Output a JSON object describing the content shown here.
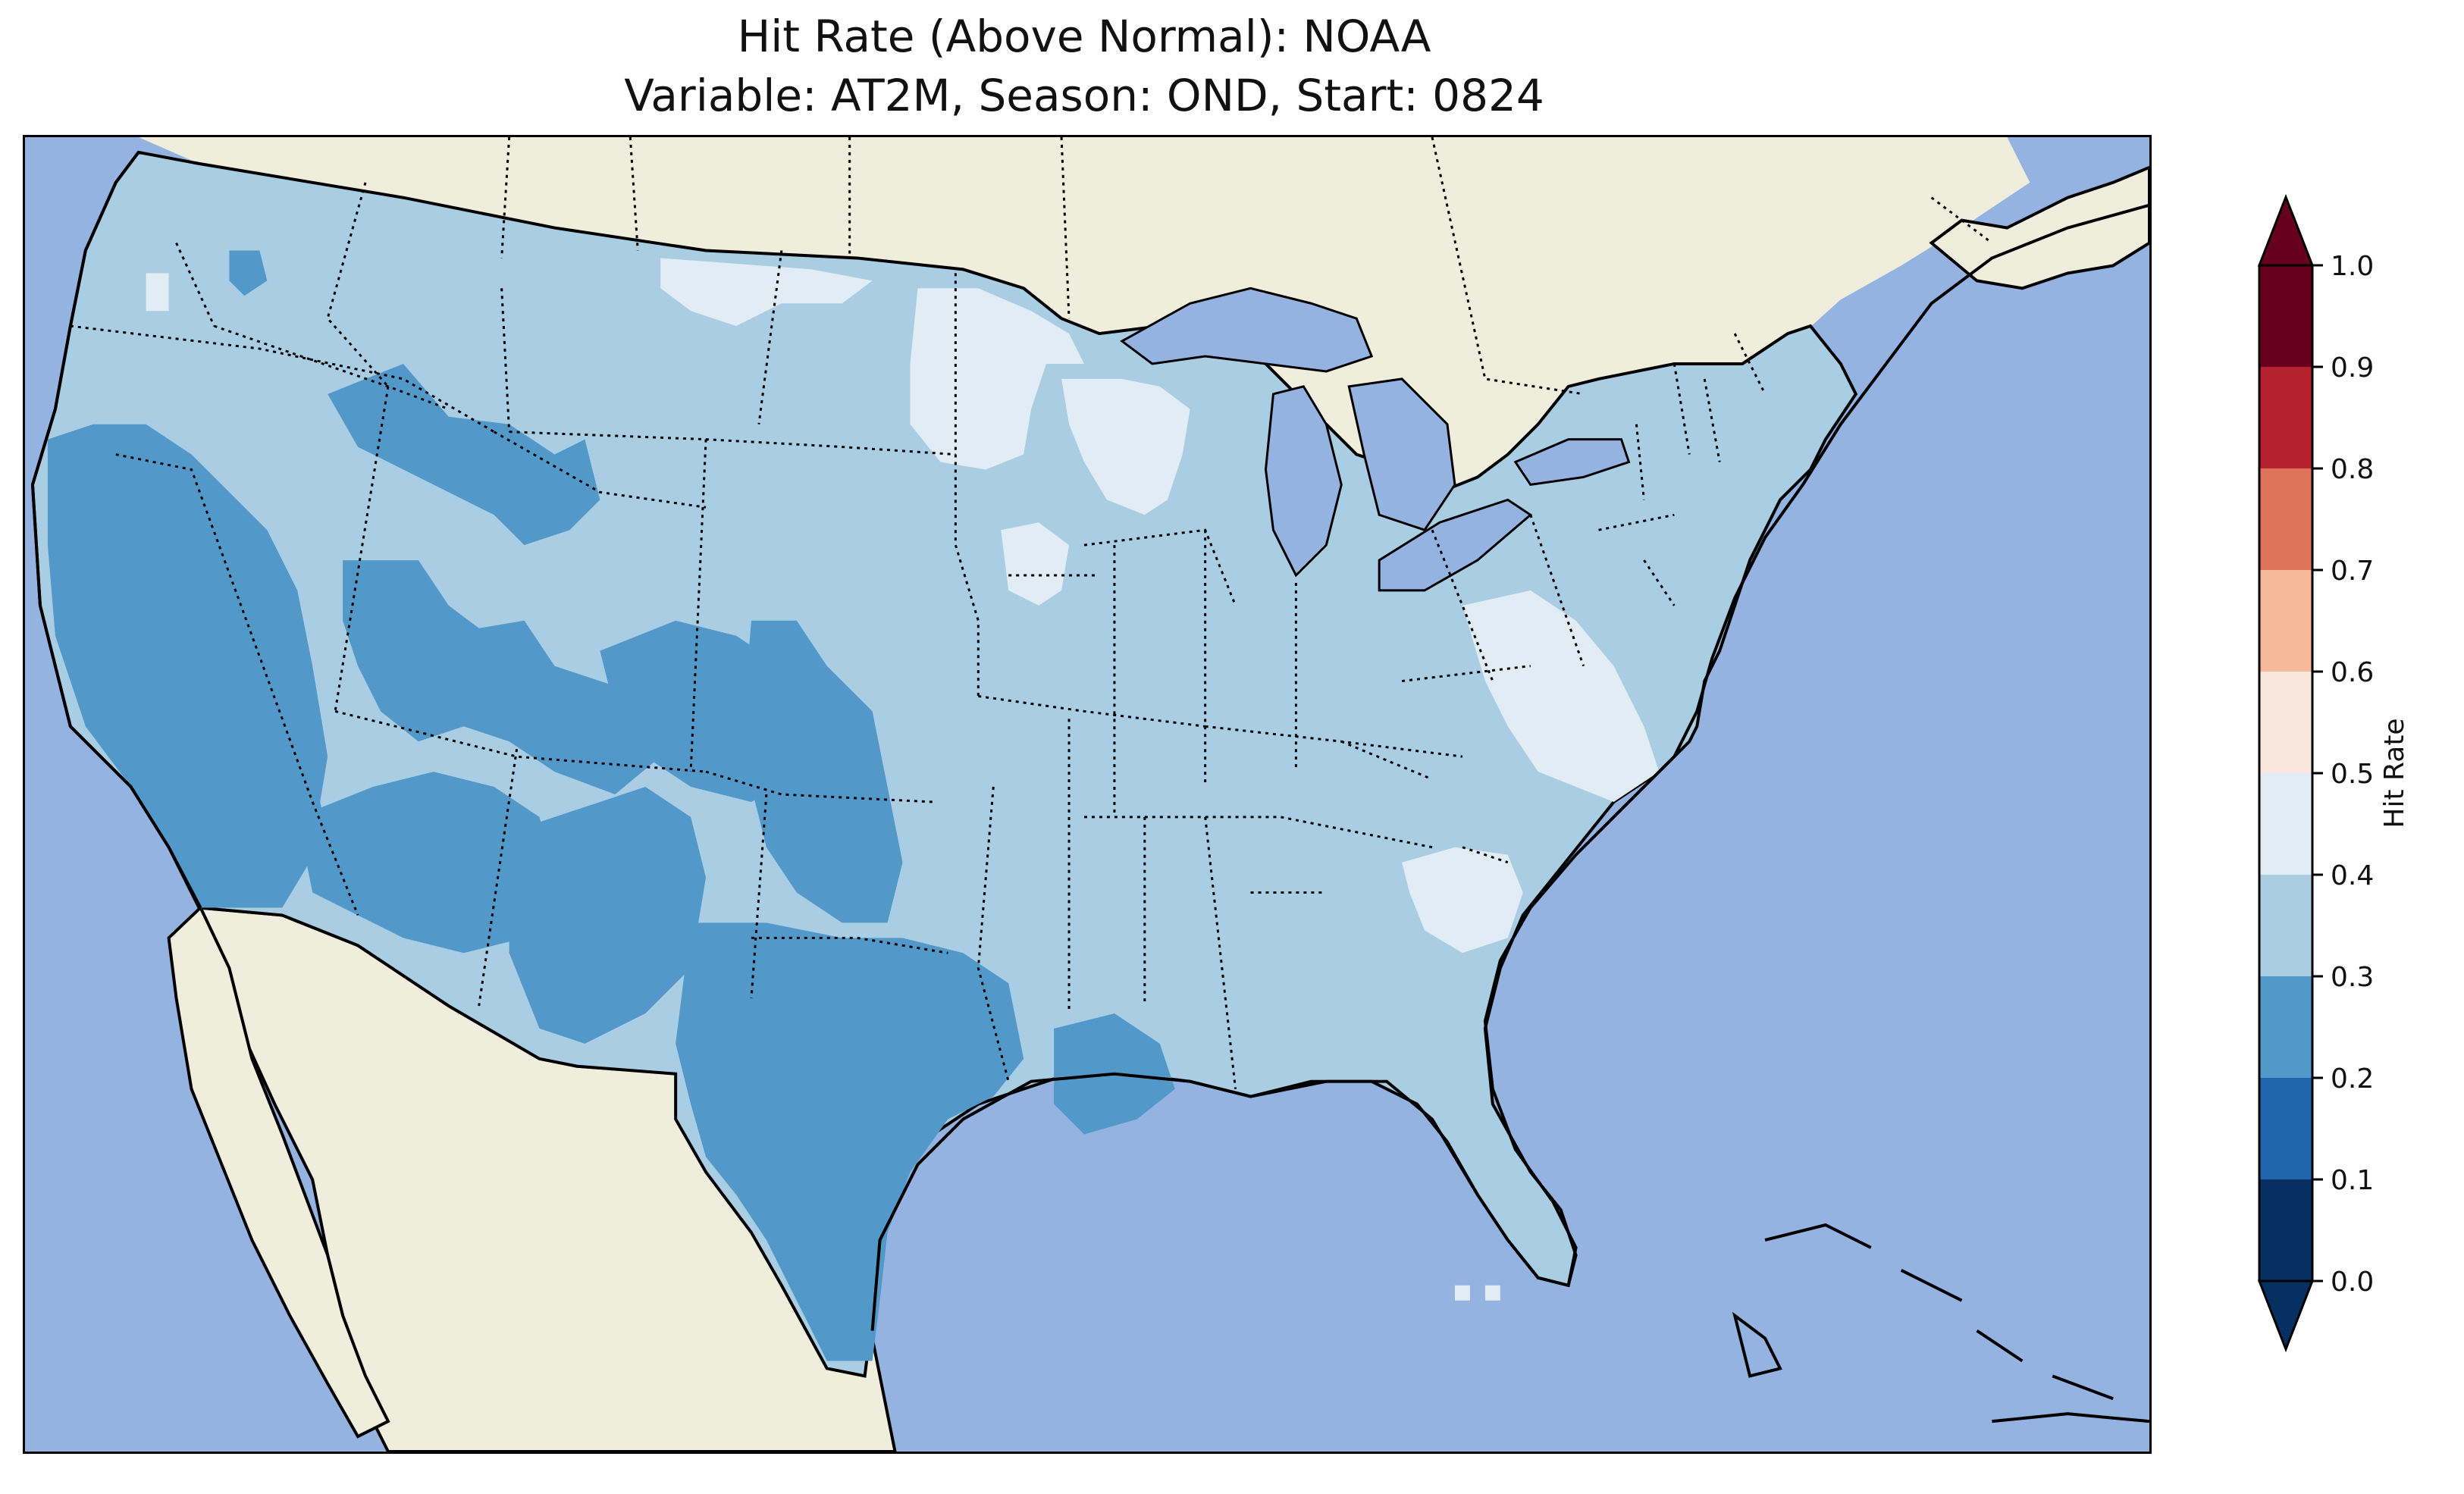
{
  "title": {
    "line1": "Hit Rate (Above Normal): NOAA",
    "line2": "Variable: AT2M, Season: OND, Start: 0824"
  },
  "colors": {
    "ocean": "#95b3e0",
    "land": "#efeedd",
    "lakes": "#95b3e0",
    "border": "#000000"
  },
  "colorbar": {
    "label": "Hit Rate",
    "min": 0.0,
    "max": 1.0,
    "extend": "both",
    "ticks": [
      "0.0",
      "0.1",
      "0.2",
      "0.3",
      "0.4",
      "0.5",
      "0.6",
      "0.7",
      "0.8",
      "0.9",
      "1.0"
    ],
    "bins": [
      {
        "lo": 0.0,
        "hi": 0.1,
        "color": "#053061"
      },
      {
        "lo": 0.1,
        "hi": 0.2,
        "color": "#2166ac"
      },
      {
        "lo": 0.2,
        "hi": 0.3,
        "color": "#5299c9"
      },
      {
        "lo": 0.3,
        "hi": 0.4,
        "color": "#a9cde3"
      },
      {
        "lo": 0.4,
        "hi": 0.5,
        "color": "#e1ecf4"
      },
      {
        "lo": 0.5,
        "hi": 0.6,
        "color": "#f9e7de"
      },
      {
        "lo": 0.6,
        "hi": 0.7,
        "color": "#f6b99a"
      },
      {
        "lo": 0.7,
        "hi": 0.8,
        "color": "#de7359"
      },
      {
        "lo": 0.8,
        "hi": 0.9,
        "color": "#b5212e"
      },
      {
        "lo": 0.9,
        "hi": 1.0,
        "color": "#67001f"
      }
    ],
    "under_color": "#053061",
    "over_color": "#67001f"
  },
  "map_data": {
    "type": "heatmap",
    "projection": "PlateCarree",
    "extent_lon": [
      -125,
      -67
    ],
    "extent_lat": [
      23,
      50
    ],
    "hit_rate_regions": [
      {
        "region": "Pacific Northwest",
        "value": 0.35
      },
      {
        "region": "California / Nevada",
        "value": 0.25
      },
      {
        "region": "Arizona / New Mexico",
        "value": 0.25
      },
      {
        "region": "Colorado / Utah",
        "value": 0.25
      },
      {
        "region": "Texas / Oklahoma",
        "value": 0.25
      },
      {
        "region": "Northern Plains",
        "value": 0.35
      },
      {
        "region": "Upper Midwest (MN/WI)",
        "value": 0.45
      },
      {
        "region": "Ohio Valley",
        "value": 0.35
      },
      {
        "region": "Southeast",
        "value": 0.35
      },
      {
        "region": "Mid-Atlantic / Carolinas coast",
        "value": 0.45
      },
      {
        "region": "Northeast",
        "value": 0.35
      },
      {
        "region": "Florida",
        "value": 0.35
      }
    ]
  }
}
